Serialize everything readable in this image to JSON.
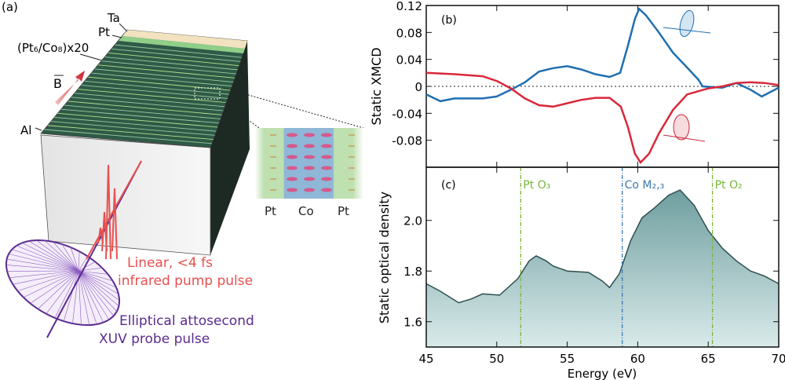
{
  "diagram": {
    "panel_label": "(a)",
    "layer_labels": [
      "Ta",
      "Pt",
      "(Pt₆/Co₈)x20",
      "Al"
    ],
    "field_label": "B",
    "inset_labels": [
      "Pt",
      "Co",
      "Pt"
    ],
    "pump_label": [
      "Linear, <4 fs",
      "infrared pump pulse"
    ],
    "probe_label": [
      "Elliptical attosecond",
      "XUV probe pulse"
    ],
    "colors": {
      "pump": "#e8504f",
      "probe": "#5b2b8f",
      "layers": "#2e5a47"
    }
  },
  "chart_data": [
    {
      "type": "line",
      "panel_label": "(b)",
      "xlabel": "",
      "ylabel": "Static XMCD",
      "xlim": [
        45,
        70
      ],
      "ylim": [
        -0.12,
        0.12
      ],
      "yticks": [
        "0.12",
        "0.08",
        "0.04",
        "0",
        "-0.04",
        "-0.08"
      ],
      "ytick_values": [
        0.12,
        0.08,
        0.04,
        0,
        -0.04,
        -0.08
      ],
      "zero_line": "dotted",
      "series": [
        {
          "name": "blue",
          "color": "#1f6fb0",
          "x": [
            45,
            46,
            47,
            48,
            49,
            50,
            51,
            52,
            53,
            54,
            55,
            56,
            57,
            58,
            58.75,
            59.3,
            59.8,
            60.1,
            60.6,
            61.5,
            62.5,
            63.5,
            64.3,
            64.6,
            66,
            67,
            68,
            68.8,
            70
          ],
          "y": [
            -0.012,
            -0.022,
            -0.018,
            -0.018,
            -0.018,
            -0.015,
            -0.005,
            0.006,
            0.022,
            0.027,
            0.03,
            0.025,
            0.018,
            0.014,
            0.02,
            0.06,
            0.1,
            0.115,
            0.105,
            0.08,
            0.05,
            0.028,
            0.01,
            0.0,
            -0.002,
            0.005,
            -0.005,
            -0.015,
            -0.002
          ]
        },
        {
          "name": "red",
          "color": "#d8283a",
          "x": [
            45,
            47,
            49,
            50,
            51,
            52,
            53,
            54,
            55,
            56,
            57,
            58,
            58.8,
            59.3,
            59.8,
            60.2,
            60.8,
            61.5,
            62.5,
            63.5,
            65,
            66,
            67,
            68,
            69,
            70
          ],
          "y": [
            0.02,
            0.018,
            0.015,
            0.008,
            -0.003,
            -0.018,
            -0.028,
            -0.03,
            -0.025,
            -0.02,
            -0.017,
            -0.017,
            -0.03,
            -0.06,
            -0.1,
            -0.113,
            -0.1,
            -0.07,
            -0.035,
            -0.012,
            -0.003,
            0.0,
            0.005,
            0.006,
            0.005,
            0.002
          ]
        }
      ]
    },
    {
      "type": "area",
      "panel_label": "(c)",
      "xlabel": "Energy (eV)",
      "ylabel": "Static optical density",
      "xlim": [
        45,
        70
      ],
      "ylim": [
        1.5,
        2.21
      ],
      "xticks": [
        "45",
        "50",
        "55",
        "60",
        "65",
        "70"
      ],
      "xtick_values": [
        45,
        50,
        55,
        60,
        65,
        70
      ],
      "yticks": [
        "2.0",
        "1.8",
        "1.6"
      ],
      "ytick_values": [
        2.0,
        1.8,
        1.6
      ],
      "series": [
        {
          "name": "optical density",
          "color": "#2f4f4f",
          "fill": "#7fa9aa",
          "x": [
            45,
            46,
            47.3,
            48.2,
            49,
            50.2,
            51.5,
            52.3,
            52.8,
            53.5,
            54,
            55,
            56.5,
            57.5,
            58,
            58.7,
            59.5,
            60.3,
            61.2,
            62.2,
            63,
            64,
            65,
            66,
            67,
            68,
            69,
            70
          ],
          "y": [
            1.75,
            1.72,
            1.675,
            1.69,
            1.71,
            1.705,
            1.77,
            1.84,
            1.86,
            1.84,
            1.82,
            1.8,
            1.795,
            1.76,
            1.735,
            1.79,
            1.92,
            2.01,
            2.05,
            2.1,
            2.12,
            2.06,
            1.96,
            1.89,
            1.84,
            1.8,
            1.78,
            1.75
          ]
        }
      ],
      "annotations": [
        {
          "label": "Pt O₃",
          "x": 51.7,
          "color": "#7ab43c"
        },
        {
          "label": "Co M₂,₃",
          "x": 58.9,
          "color": "#3d78b0"
        },
        {
          "label": "Pt O₂",
          "x": 65.3,
          "color": "#7ab43c"
        }
      ]
    }
  ]
}
